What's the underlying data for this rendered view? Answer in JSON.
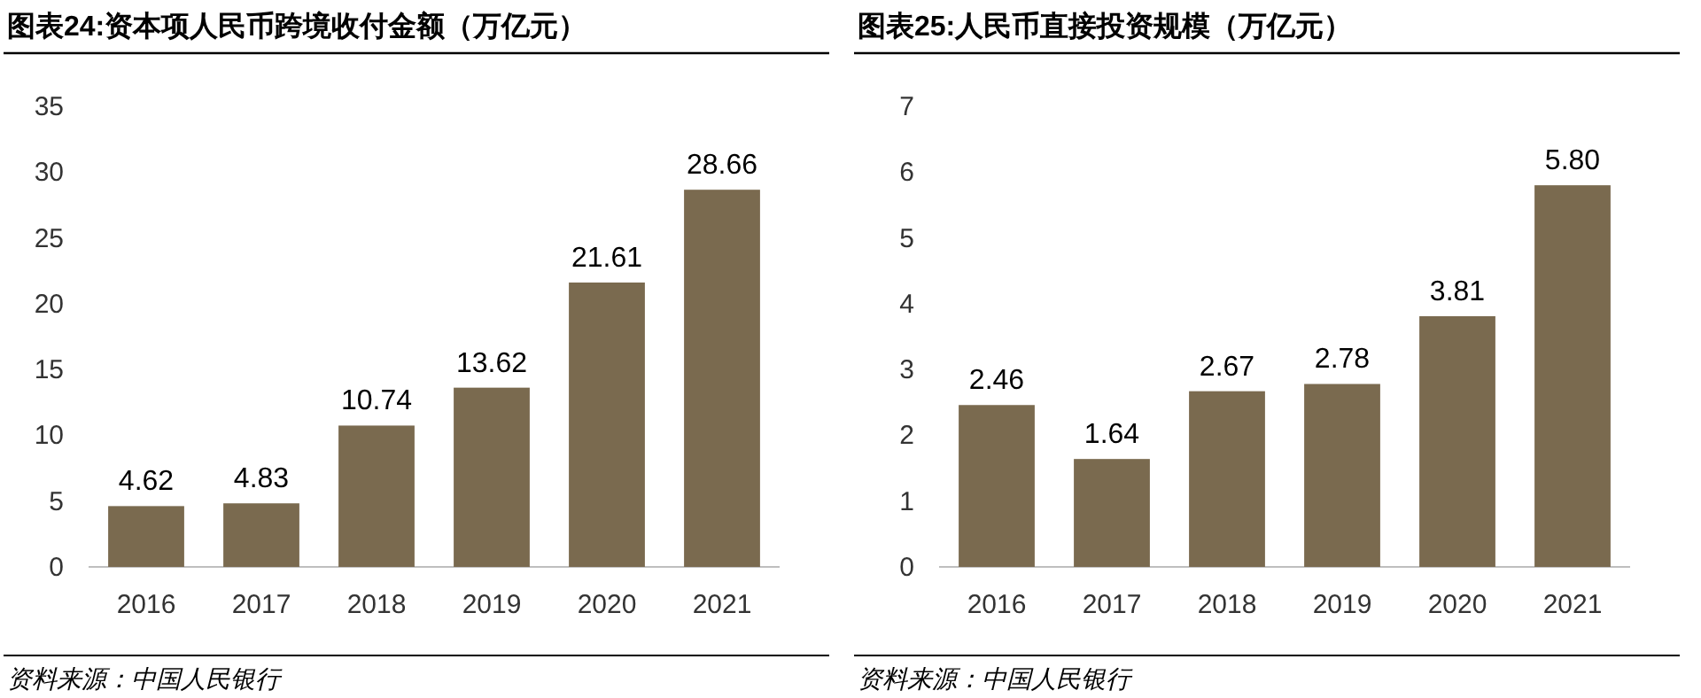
{
  "chart_data": [
    {
      "type": "bar",
      "title": "图表24:资本项人民币跨境收付金额（万亿元）",
      "categories": [
        "2016",
        "2017",
        "2018",
        "2019",
        "2020",
        "2021"
      ],
      "values": [
        4.62,
        4.83,
        10.74,
        13.62,
        21.61,
        28.66
      ],
      "color": "#7a6a4f",
      "ylim": [
        0,
        35
      ],
      "yticks": [
        0,
        5,
        10,
        15,
        20,
        25,
        30,
        35
      ],
      "data_labels": true,
      "annotations": [
        "资料来源：中国人民银行"
      ]
    },
    {
      "type": "bar",
      "title": "图表25:人民币直接投资规模（万亿元）",
      "categories": [
        "2016",
        "2017",
        "2018",
        "2019",
        "2020",
        "2021"
      ],
      "values": [
        2.46,
        1.64,
        2.67,
        2.78,
        3.81,
        5.8
      ],
      "value_labels": [
        "2.46",
        "1.64",
        "2.67",
        "2.78",
        "3.81",
        "5.80"
      ],
      "color": "#7a6a4f",
      "ylim": [
        0,
        7
      ],
      "yticks": [
        0,
        1,
        2,
        3,
        4,
        5,
        6,
        7
      ],
      "annotations": [
        "资料来源：中国人民银行"
      ]
    }
  ]
}
